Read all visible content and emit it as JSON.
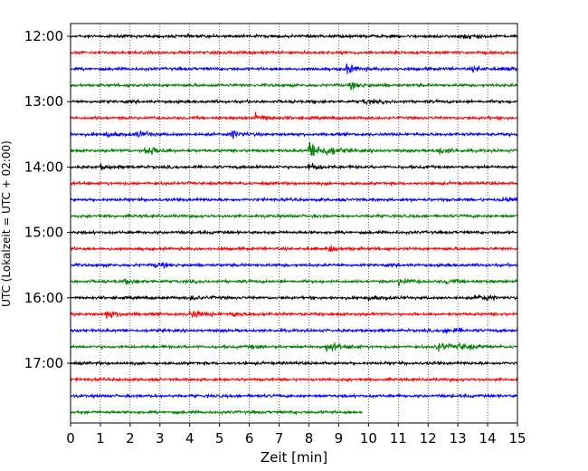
{
  "chart_data": {
    "type": "line",
    "title": "",
    "xlabel": "Zeit  [min]",
    "ylabel": "UTC (Lokalzeit = UTC + 02:00)",
    "xlim": [
      0,
      15
    ],
    "x_ticks": [
      "0",
      "1",
      "2",
      "3",
      "4",
      "5",
      "6",
      "7",
      "8",
      "9",
      "10",
      "11",
      "12",
      "13",
      "14",
      "15"
    ],
    "y_ticks": [
      "12:00",
      "13:00",
      "14:00",
      "15:00",
      "16:00",
      "17:00"
    ],
    "grid": "vertical dotted at each minute",
    "trace_interval_min": 15,
    "start_time": "12:00",
    "colors_cycle": [
      "#000000",
      "#ff0000",
      "#0000ff",
      "#008000"
    ],
    "traces": [
      {
        "label": "12:00",
        "color": "black",
        "end_min": 15,
        "events": [
          [
            13.2,
            4
          ]
        ]
      },
      {
        "label": "12:15",
        "color": "red",
        "end_min": 15,
        "events": []
      },
      {
        "label": "12:30",
        "color": "blue",
        "end_min": 15,
        "events": [
          [
            9.2,
            7
          ],
          [
            13.5,
            3
          ],
          [
            14.6,
            3
          ]
        ]
      },
      {
        "label": "12:45",
        "color": "green",
        "end_min": 15,
        "events": [
          [
            9.4,
            4
          ]
        ]
      },
      {
        "label": "13:00",
        "color": "black",
        "end_min": 15,
        "events": [
          [
            9.8,
            3
          ]
        ]
      },
      {
        "label": "13:15",
        "color": "red",
        "end_min": 15,
        "events": [
          [
            6.2,
            6
          ]
        ]
      },
      {
        "label": "13:30",
        "color": "blue",
        "end_min": 15,
        "events": [
          [
            1.2,
            4
          ],
          [
            2.2,
            5
          ],
          [
            5.4,
            5
          ]
        ]
      },
      {
        "label": "13:45",
        "color": "green",
        "end_min": 15,
        "events": [
          [
            2.5,
            9
          ],
          [
            8.0,
            16
          ],
          [
            8.6,
            6
          ],
          [
            12.3,
            5
          ]
        ]
      },
      {
        "label": "14:00",
        "color": "black",
        "end_min": 15,
        "events": [
          [
            1.0,
            3
          ],
          [
            8.0,
            5
          ]
        ]
      },
      {
        "label": "14:15",
        "color": "red",
        "end_min": 15,
        "events": []
      },
      {
        "label": "14:30",
        "color": "blue",
        "end_min": 15,
        "events": [
          [
            14.5,
            5
          ]
        ]
      },
      {
        "label": "14:45",
        "color": "green",
        "end_min": 15,
        "events": []
      },
      {
        "label": "15:00",
        "color": "black",
        "end_min": 15,
        "events": []
      },
      {
        "label": "15:15",
        "color": "red",
        "end_min": 15,
        "events": [
          [
            8.7,
            4
          ]
        ]
      },
      {
        "label": "15:30",
        "color": "blue",
        "end_min": 15,
        "events": [
          [
            2.8,
            3
          ]
        ]
      },
      {
        "label": "15:45",
        "color": "green",
        "end_min": 15,
        "events": [
          [
            1.8,
            3
          ],
          [
            11.0,
            5
          ],
          [
            12.6,
            3
          ]
        ]
      },
      {
        "label": "16:00",
        "color": "black",
        "end_min": 15,
        "events": [
          [
            4.0,
            3
          ],
          [
            10.0,
            3
          ],
          [
            13.6,
            5
          ]
        ]
      },
      {
        "label": "16:15",
        "color": "red",
        "end_min": 15,
        "events": [
          [
            1.2,
            6
          ],
          [
            4.0,
            6
          ],
          [
            5.4,
            4
          ]
        ]
      },
      {
        "label": "16:30",
        "color": "blue",
        "end_min": 15,
        "events": [
          [
            12.5,
            5
          ]
        ]
      },
      {
        "label": "16:45",
        "color": "green",
        "end_min": 15,
        "events": [
          [
            6.0,
            3
          ],
          [
            8.6,
            9
          ],
          [
            12.3,
            6
          ],
          [
            13.0,
            5
          ]
        ]
      },
      {
        "label": "17:00",
        "color": "black",
        "end_min": 15,
        "events": []
      },
      {
        "label": "17:15",
        "color": "red",
        "end_min": 15,
        "events": []
      },
      {
        "label": "17:30",
        "color": "blue",
        "end_min": 15,
        "events": []
      },
      {
        "label": "17:45",
        "color": "green",
        "end_min": 9.8,
        "events": []
      }
    ]
  }
}
